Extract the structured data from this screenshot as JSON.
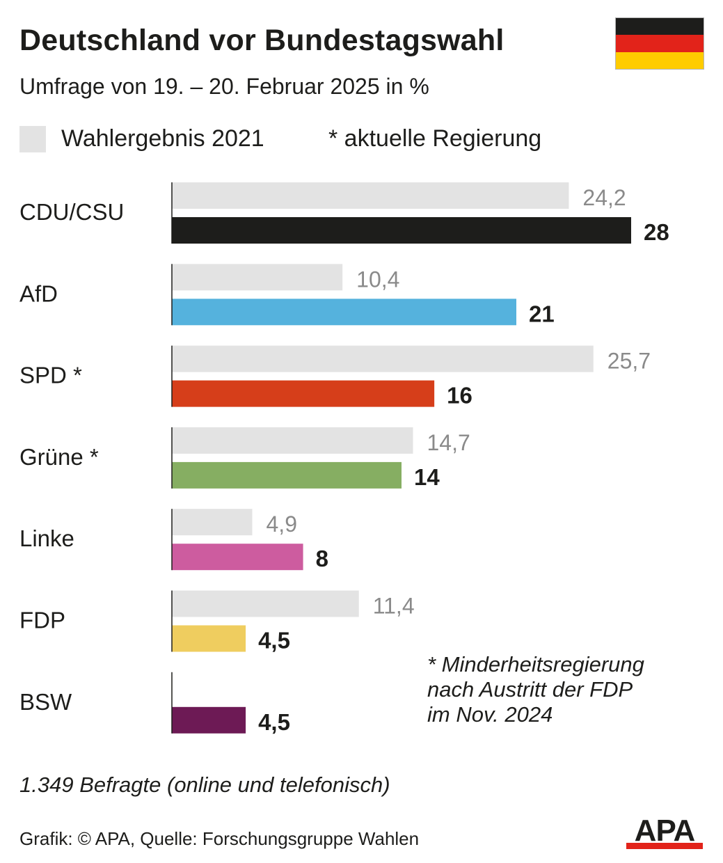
{
  "header": {
    "title": "Deutschland vor Bundestagswahl",
    "subtitle": "Umfrage von 19. – 20. Februar 2025 in %"
  },
  "flag": {
    "name": "germany-flag",
    "colors": [
      "#1d1d1b",
      "#e2231a",
      "#ffcc00"
    ]
  },
  "legend": {
    "previous_label": "Wahlergebnis 2021",
    "previous_color": "#e3e3e3",
    "government_note": "* aktuelle Regierung"
  },
  "chart_data": {
    "type": "bar",
    "orientation": "horizontal",
    "unit": "%",
    "categories": [
      "CDU/CSU",
      "AfD",
      "SPD *",
      "Grüne *",
      "Linke",
      "FDP",
      "BSW"
    ],
    "series": [
      {
        "name": "Wahlergebnis 2021",
        "values": [
          24.2,
          10.4,
          25.7,
          14.7,
          4.9,
          11.4,
          null
        ],
        "labels": [
          "24,2",
          "10,4",
          "25,7",
          "14,7",
          "4,9",
          "11,4",
          ""
        ],
        "color": "#e3e3e3",
        "label_color": "#8a8a8a"
      },
      {
        "values": [
          28,
          21,
          16,
          14,
          8,
          4.5,
          4.5
        ],
        "labels": [
          "28",
          "21",
          "16",
          "14",
          "8",
          "4,5",
          "4,5"
        ],
        "colors": [
          "#1d1d1b",
          "#55b2dd",
          "#d63e1a",
          "#86ae62",
          "#cd5c9f",
          "#efcd5f",
          "#6d1a55"
        ],
        "label_color": "#1d1d1b"
      }
    ],
    "xlim": [
      0,
      28
    ]
  },
  "footnote": {
    "lines": [
      "* Minderheitsregierung",
      "nach Austritt der FDP",
      "im Nov. 2024"
    ]
  },
  "respondents": "1.349 Befragte (online und telefonisch)",
  "source": "Grafik: © APA, Quelle: Forschungsgruppe Wahlen",
  "logo": {
    "text": "APA",
    "text_color": "#1d1d1b",
    "stripe_color": "#e2231a"
  }
}
